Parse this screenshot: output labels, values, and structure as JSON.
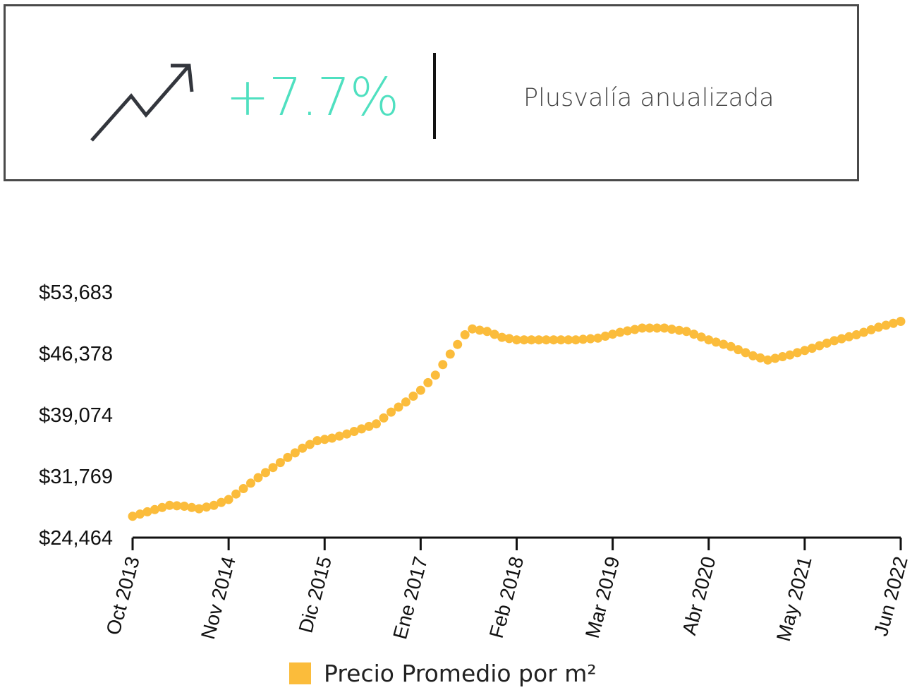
{
  "kpi": {
    "value": "+7.7%",
    "label": "Plusvalía anualizada",
    "icon": "trending-up-icon",
    "value_color": "#4fe0c0"
  },
  "chart_data": {
    "type": "line",
    "x_axis": "dates",
    "x_start": "2013-10",
    "x_end": "2022-06",
    "xticks": [
      "Oct 2013",
      "Nov 2014",
      "Dic 2015",
      "Ene 2017",
      "Feb 2018",
      "Mar 2019",
      "Abr 2020",
      "May 2021",
      "Jun 2022"
    ],
    "yticks": [
      "$24,464",
      "$31,769",
      "$39,074",
      "$46,378",
      "$53,683"
    ],
    "ylim": [
      24464,
      53683
    ],
    "series": [
      {
        "name": "Precio Promedio por m²",
        "color": "#fbbc3b",
        "points": [
          [
            "2013-10",
            27000
          ],
          [
            "2014-01",
            27800
          ],
          [
            "2014-03",
            28300
          ],
          [
            "2014-05",
            28200
          ],
          [
            "2014-07",
            27900
          ],
          [
            "2014-09",
            28300
          ],
          [
            "2014-11",
            29000
          ],
          [
            "2015-01",
            30300
          ],
          [
            "2015-03",
            31600
          ],
          [
            "2015-05",
            32800
          ],
          [
            "2015-07",
            34000
          ],
          [
            "2015-09",
            35100
          ],
          [
            "2015-11",
            36000
          ],
          [
            "2016-01",
            36300
          ],
          [
            "2016-03",
            36800
          ],
          [
            "2016-05",
            37400
          ],
          [
            "2016-07",
            38000
          ],
          [
            "2016-09",
            39400
          ],
          [
            "2016-11",
            40600
          ],
          [
            "2017-01",
            42000
          ],
          [
            "2017-03",
            43800
          ],
          [
            "2017-05",
            46300
          ],
          [
            "2017-07",
            48600
          ],
          [
            "2017-08",
            49300
          ],
          [
            "2017-10",
            49000
          ],
          [
            "2017-12",
            48300
          ],
          [
            "2018-02",
            48000
          ],
          [
            "2018-06",
            48000
          ],
          [
            "2018-10",
            48000
          ],
          [
            "2019-01",
            48200
          ],
          [
            "2019-04",
            48900
          ],
          [
            "2019-07",
            49400
          ],
          [
            "2019-10",
            49400
          ],
          [
            "2020-01",
            49000
          ],
          [
            "2020-04",
            48000
          ],
          [
            "2020-07",
            47200
          ],
          [
            "2020-10",
            46100
          ],
          [
            "2020-12",
            45600
          ],
          [
            "2021-03",
            46200
          ],
          [
            "2021-06",
            47000
          ],
          [
            "2021-09",
            47900
          ],
          [
            "2021-12",
            48600
          ],
          [
            "2022-03",
            49500
          ],
          [
            "2022-06",
            50200
          ]
        ]
      }
    ],
    "grid": false,
    "legend": "bottom"
  }
}
